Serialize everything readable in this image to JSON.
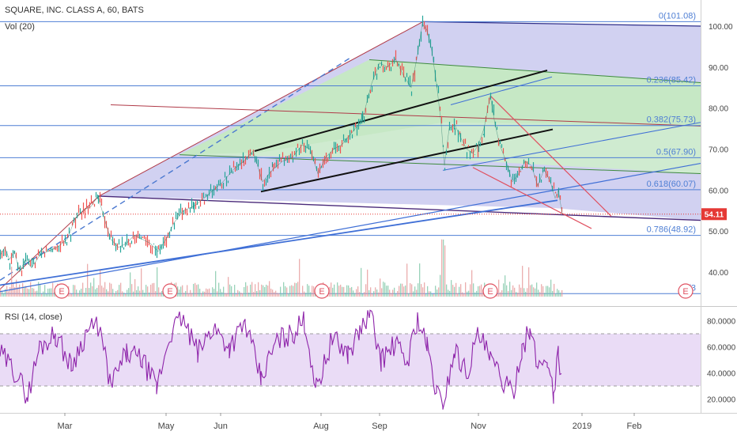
{
  "header": {
    "symbol_title": "SQUARE, INC. CLASS A, 60, BATS",
    "vol_label": "Vol (20)",
    "rsi_label": "RSI (14, close)"
  },
  "price_badge": {
    "value": "54.11",
    "color": "#e53935"
  },
  "chart_data": [
    {
      "type": "line",
      "title": "SQUARE, INC. CLASS A, 60, BATS",
      "y_ticks": [
        40,
        50,
        60,
        70,
        80,
        90,
        100
      ],
      "y_tick_labels": [
        "40.00",
        "50.00",
        "60.00",
        "70.00",
        "80.00",
        "90.00",
        "100.00"
      ],
      "ylim": [
        34,
        102.5
      ],
      "last_price": 54.11,
      "x_ticks": [
        "Mar",
        "May",
        "Jun",
        "Aug",
        "Sep",
        "Nov",
        "2019",
        "Feb"
      ],
      "fib_levels": [
        {
          "ratio": "0",
          "value": 101.08,
          "label": "0(101.08)"
        },
        {
          "ratio": "0.236",
          "value": 85.42,
          "label": "0.236(85.42)"
        },
        {
          "ratio": "0.382",
          "value": 75.73,
          "label": "0.382(75.73)"
        },
        {
          "ratio": "0.5",
          "value": 67.9,
          "label": "0.5(67.90)"
        },
        {
          "ratio": "0.618",
          "value": 60.07,
          "label": "0.618(60.07)"
        },
        {
          "ratio": "0.786",
          "value": 48.92,
          "label": "0.786(48.92)"
        },
        {
          "ratio": "1",
          "value": 34.72,
          "label": "1(3"
        }
      ],
      "earnings_marker_label": "E",
      "earnings_count": 5,
      "price_path": [
        {
          "t": 0,
          "v": 44
        },
        {
          "t": 6,
          "v": 46
        },
        {
          "t": 12,
          "v": 43
        },
        {
          "t": 18,
          "v": 45
        },
        {
          "t": 25,
          "v": 40
        },
        {
          "t": 32,
          "v": 43
        },
        {
          "t": 40,
          "v": 41
        },
        {
          "t": 50,
          "v": 44
        },
        {
          "t": 60,
          "v": 45
        },
        {
          "t": 72,
          "v": 46
        },
        {
          "t": 85,
          "v": 48
        },
        {
          "t": 95,
          "v": 53
        },
        {
          "t": 105,
          "v": 55
        },
        {
          "t": 115,
          "v": 56
        },
        {
          "t": 124,
          "v": 58.5
        },
        {
          "t": 132,
          "v": 53
        },
        {
          "t": 140,
          "v": 48
        },
        {
          "t": 150,
          "v": 46
        },
        {
          "t": 160,
          "v": 47
        },
        {
          "t": 170,
          "v": 49
        },
        {
          "t": 180,
          "v": 48
        },
        {
          "t": 190,
          "v": 47
        },
        {
          "t": 200,
          "v": 45
        },
        {
          "t": 210,
          "v": 48
        },
        {
          "t": 220,
          "v": 52
        },
        {
          "t": 232,
          "v": 55
        },
        {
          "t": 245,
          "v": 56
        },
        {
          "t": 258,
          "v": 58
        },
        {
          "t": 270,
          "v": 60
        },
        {
          "t": 282,
          "v": 62
        },
        {
          "t": 295,
          "v": 65
        },
        {
          "t": 308,
          "v": 67
        },
        {
          "t": 320,
          "v": 69.5
        },
        {
          "t": 332,
          "v": 62
        },
        {
          "t": 345,
          "v": 65
        },
        {
          "t": 357,
          "v": 67
        },
        {
          "t": 370,
          "v": 68
        },
        {
          "t": 382,
          "v": 71
        },
        {
          "t": 392,
          "v": 70
        },
        {
          "t": 402,
          "v": 64
        },
        {
          "t": 412,
          "v": 68
        },
        {
          "t": 422,
          "v": 70
        },
        {
          "t": 432,
          "v": 71
        },
        {
          "t": 445,
          "v": 74
        },
        {
          "t": 458,
          "v": 77
        },
        {
          "t": 470,
          "v": 86
        },
        {
          "t": 480,
          "v": 91
        },
        {
          "t": 490,
          "v": 90
        },
        {
          "t": 500,
          "v": 92
        },
        {
          "t": 510,
          "v": 88
        },
        {
          "t": 520,
          "v": 85
        },
        {
          "t": 528,
          "v": 93
        },
        {
          "t": 534,
          "v": 100.5
        },
        {
          "t": 540,
          "v": 99
        },
        {
          "t": 546,
          "v": 94
        },
        {
          "t": 552,
          "v": 86
        },
        {
          "t": 558,
          "v": 76
        },
        {
          "t": 562,
          "v": 66
        },
        {
          "t": 568,
          "v": 75
        },
        {
          "t": 575,
          "v": 76
        },
        {
          "t": 582,
          "v": 73
        },
        {
          "t": 590,
          "v": 70
        },
        {
          "t": 598,
          "v": 69
        },
        {
          "t": 605,
          "v": 71
        },
        {
          "t": 612,
          "v": 75
        },
        {
          "t": 620,
          "v": 83
        },
        {
          "t": 626,
          "v": 76
        },
        {
          "t": 632,
          "v": 71
        },
        {
          "t": 640,
          "v": 67
        },
        {
          "t": 648,
          "v": 62
        },
        {
          "t": 656,
          "v": 64
        },
        {
          "t": 664,
          "v": 67
        },
        {
          "t": 672,
          "v": 66
        },
        {
          "t": 680,
          "v": 61
        },
        {
          "t": 688,
          "v": 65
        },
        {
          "t": 696,
          "v": 62
        },
        {
          "t": 702,
          "v": 58
        },
        {
          "t": 706,
          "v": 60
        },
        {
          "t": 711,
          "v": 54.11
        }
      ],
      "volume": {
        "label": "Vol (20)"
      }
    },
    {
      "type": "line",
      "title": "RSI (14, close)",
      "y_ticks": [
        20,
        40,
        60,
        80
      ],
      "y_tick_labels": [
        "20.0000",
        "40.0000",
        "60.0000",
        "80.0000"
      ],
      "ylim": [
        10,
        90
      ],
      "bands": [
        30,
        70
      ],
      "rsi_path": [
        {
          "t": 0,
          "v": 55
        },
        {
          "t": 20,
          "v": 40
        },
        {
          "t": 35,
          "v": 22
        },
        {
          "t": 50,
          "v": 60
        },
        {
          "t": 70,
          "v": 70
        },
        {
          "t": 90,
          "v": 45
        },
        {
          "t": 110,
          "v": 72
        },
        {
          "t": 125,
          "v": 76
        },
        {
          "t": 140,
          "v": 30
        },
        {
          "t": 160,
          "v": 55
        },
        {
          "t": 180,
          "v": 50
        },
        {
          "t": 198,
          "v": 28
        },
        {
          "t": 215,
          "v": 70
        },
        {
          "t": 230,
          "v": 82
        },
        {
          "t": 250,
          "v": 55
        },
        {
          "t": 270,
          "v": 75
        },
        {
          "t": 290,
          "v": 60
        },
        {
          "t": 310,
          "v": 78
        },
        {
          "t": 330,
          "v": 35
        },
        {
          "t": 350,
          "v": 65
        },
        {
          "t": 370,
          "v": 70
        },
        {
          "t": 385,
          "v": 80
        },
        {
          "t": 400,
          "v": 28
        },
        {
          "t": 420,
          "v": 66
        },
        {
          "t": 440,
          "v": 55
        },
        {
          "t": 455,
          "v": 72
        },
        {
          "t": 468,
          "v": 86
        },
        {
          "t": 482,
          "v": 50
        },
        {
          "t": 500,
          "v": 62
        },
        {
          "t": 515,
          "v": 48
        },
        {
          "t": 528,
          "v": 82
        },
        {
          "t": 540,
          "v": 60
        },
        {
          "t": 552,
          "v": 25
        },
        {
          "t": 560,
          "v": 15
        },
        {
          "t": 575,
          "v": 58
        },
        {
          "t": 590,
          "v": 40
        },
        {
          "t": 605,
          "v": 70
        },
        {
          "t": 620,
          "v": 50
        },
        {
          "t": 635,
          "v": 35
        },
        {
          "t": 648,
          "v": 22
        },
        {
          "t": 660,
          "v": 60
        },
        {
          "t": 670,
          "v": 72
        },
        {
          "t": 680,
          "v": 45
        },
        {
          "t": 692,
          "v": 52
        },
        {
          "t": 700,
          "v": 23
        },
        {
          "t": 706,
          "v": 55
        },
        {
          "t": 711,
          "v": 32
        }
      ]
    }
  ]
}
